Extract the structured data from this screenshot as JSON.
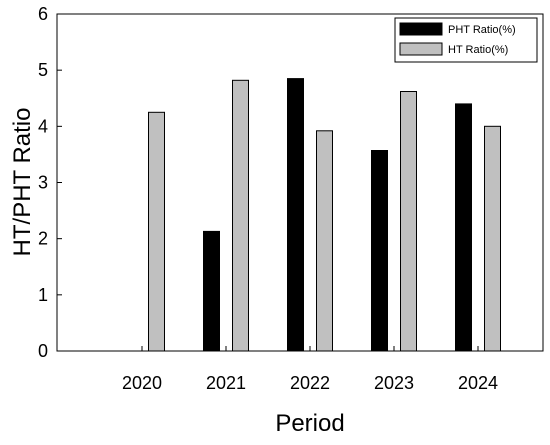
{
  "chart_data": {
    "type": "bar",
    "title": "",
    "xlabel": "Period",
    "ylabel": "HT/PHT Ratio",
    "categories": [
      "2020",
      "2021",
      "2022",
      "2023",
      "2024"
    ],
    "ylim": [
      0,
      6
    ],
    "yticks": [
      "0",
      "1",
      "2",
      "3",
      "4",
      "5",
      "6"
    ],
    "grid": false,
    "legend_position": "top-right",
    "series": [
      {
        "name": "PHT Ratio(%)",
        "color": "#000000",
        "values": [
          null,
          2.13,
          4.85,
          3.57,
          4.4
        ]
      },
      {
        "name": "HT Ratio(%)",
        "color": "#c0c0c0",
        "values": [
          4.25,
          4.82,
          3.92,
          4.62,
          4.0
        ]
      }
    ]
  }
}
